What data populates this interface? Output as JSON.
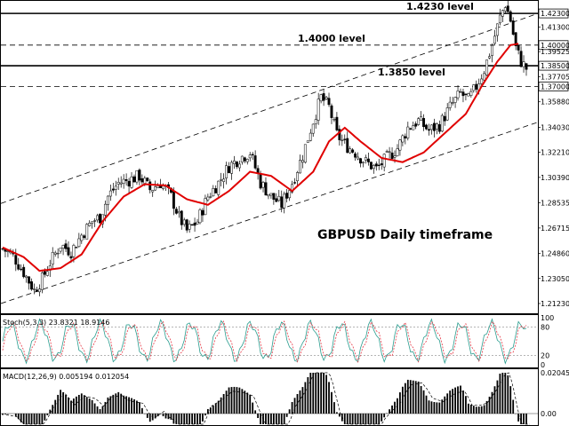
{
  "chart_data": [
    {
      "type": "candlestick",
      "title": "GBPUSD Daily timeframe",
      "ylim": [
        1.2052,
        1.4321
      ],
      "y_ticks": [
        "1.42300",
        "1.41300",
        "1.40000",
        "1.39525",
        "1.38500",
        "1.37705",
        "1.37000",
        "1.35880",
        "1.34030",
        "1.32210",
        "1.30390",
        "1.28535",
        "1.26715",
        "1.24860",
        "1.23050",
        "1.21230"
      ],
      "levels": [
        {
          "label": "1.4230 level",
          "value": 1.423,
          "style": "solid"
        },
        {
          "label": "1.4000 level",
          "value": 1.4,
          "style": "dashed"
        },
        {
          "label": "1.3850 level",
          "value": 1.385,
          "style": "solid"
        },
        {
          "label": "",
          "value": 1.37,
          "style": "dashed"
        }
      ],
      "channel": {
        "upper": [
          1.285,
          1.423
        ],
        "lower": [
          1.2123,
          1.344
        ]
      },
      "moving_average_color": "#e00000",
      "candle_colors": {
        "up": "#ffffff",
        "down": "#000000"
      },
      "close_path": [
        [
          0,
          1.252
        ],
        [
          4,
          1.247
        ],
        [
          8,
          1.235
        ],
        [
          12,
          1.222
        ],
        [
          15,
          1.23
        ],
        [
          18,
          1.242
        ],
        [
          22,
          1.255
        ],
        [
          26,
          1.25
        ],
        [
          30,
          1.262
        ],
        [
          34,
          1.272
        ],
        [
          37,
          1.275
        ],
        [
          40,
          1.29
        ],
        [
          44,
          1.3
        ],
        [
          48,
          1.302
        ],
        [
          52,
          1.305
        ],
        [
          56,
          1.295
        ],
        [
          60,
          1.3
        ],
        [
          64,
          1.29
        ],
        [
          67,
          1.275
        ],
        [
          70,
          1.265
        ],
        [
          74,
          1.272
        ],
        [
          78,
          1.29
        ],
        [
          82,
          1.3
        ],
        [
          86,
          1.312
        ],
        [
          90,
          1.318
        ],
        [
          94,
          1.322
        ],
        [
          98,
          1.3
        ],
        [
          102,
          1.29
        ],
        [
          106,
          1.284
        ],
        [
          110,
          1.3
        ],
        [
          114,
          1.32
        ],
        [
          118,
          1.345
        ],
        [
          121,
          1.362
        ],
        [
          124,
          1.355
        ],
        [
          127,
          1.335
        ],
        [
          130,
          1.328
        ],
        [
          134,
          1.322
        ],
        [
          138,
          1.315
        ],
        [
          142,
          1.31
        ],
        [
          146,
          1.318
        ],
        [
          150,
          1.325
        ],
        [
          154,
          1.34
        ],
        [
          158,
          1.345
        ],
        [
          162,
          1.338
        ],
        [
          166,
          1.342
        ],
        [
          170,
          1.355
        ],
        [
          174,
          1.365
        ],
        [
          177,
          1.36
        ],
        [
          180,
          1.37
        ],
        [
          183,
          1.382
        ],
        [
          186,
          1.4
        ],
        [
          189,
          1.42
        ],
        [
          191,
          1.43
        ],
        [
          193,
          1.418
        ],
        [
          195,
          1.398
        ],
        [
          197,
          1.388
        ],
        [
          199,
          1.383
        ]
      ],
      "ma_path": [
        [
          0,
          1.253
        ],
        [
          8,
          1.246
        ],
        [
          14,
          1.236
        ],
        [
          22,
          1.238
        ],
        [
          30,
          1.248
        ],
        [
          38,
          1.272
        ],
        [
          46,
          1.29
        ],
        [
          54,
          1.299
        ],
        [
          62,
          1.298
        ],
        [
          70,
          1.288
        ],
        [
          78,
          1.284
        ],
        [
          86,
          1.294
        ],
        [
          94,
          1.308
        ],
        [
          102,
          1.305
        ],
        [
          110,
          1.294
        ],
        [
          118,
          1.308
        ],
        [
          124,
          1.33
        ],
        [
          130,
          1.34
        ],
        [
          136,
          1.33
        ],
        [
          144,
          1.318
        ],
        [
          152,
          1.315
        ],
        [
          160,
          1.322
        ],
        [
          168,
          1.336
        ],
        [
          176,
          1.35
        ],
        [
          182,
          1.37
        ],
        [
          188,
          1.388
        ],
        [
          193,
          1.4
        ],
        [
          196,
          1.401
        ]
      ]
    },
    {
      "type": "line",
      "name": "Stoch(5,3,3) 23.8321 18.9146",
      "ylim": [
        0,
        100
      ],
      "y_ticks": [
        "100",
        "80",
        "20",
        "0"
      ],
      "levels": [
        80,
        20
      ]
    },
    {
      "type": "bar",
      "name": "MACD(12,26,9) 0.005194 0.012054",
      "y_ticks": [
        "0.020458",
        "0.00"
      ]
    }
  ]
}
